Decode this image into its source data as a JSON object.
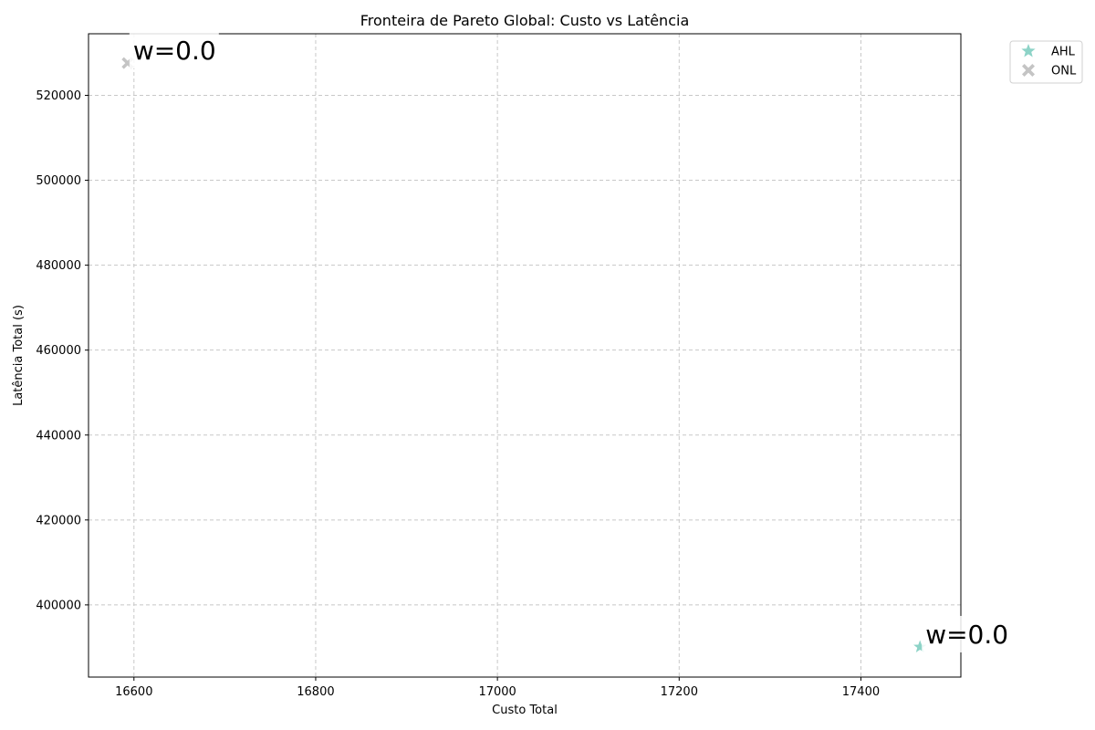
{
  "chart_data": {
    "type": "scatter",
    "title": "Fronteira de Pareto Global: Custo vs Latência",
    "xlabel": "Custo Total",
    "ylabel": "Latência Total (s)",
    "xlim": [
      16550,
      17510
    ],
    "ylim": [
      383000,
      534500
    ],
    "xticks": [
      16600,
      16800,
      17000,
      17200,
      17400
    ],
    "yticks": [
      400000,
      420000,
      440000,
      460000,
      480000,
      500000,
      520000
    ],
    "grid": true,
    "legend_position": "outside top-right",
    "series": [
      {
        "name": "AHL",
        "marker": "star",
        "color": "#8dd3c7",
        "points": [
          {
            "x": 17465,
            "y": 390100
          }
        ]
      },
      {
        "name": "ONL",
        "marker": "x",
        "color": "#c4c4c4",
        "points": [
          {
            "x": 16593,
            "y": 527600
          }
        ]
      }
    ],
    "annotations": [
      {
        "text": "w=0.0",
        "x": 16593,
        "y": 527600
      },
      {
        "text": "w=0.0",
        "x": 17465,
        "y": 390100
      }
    ]
  }
}
